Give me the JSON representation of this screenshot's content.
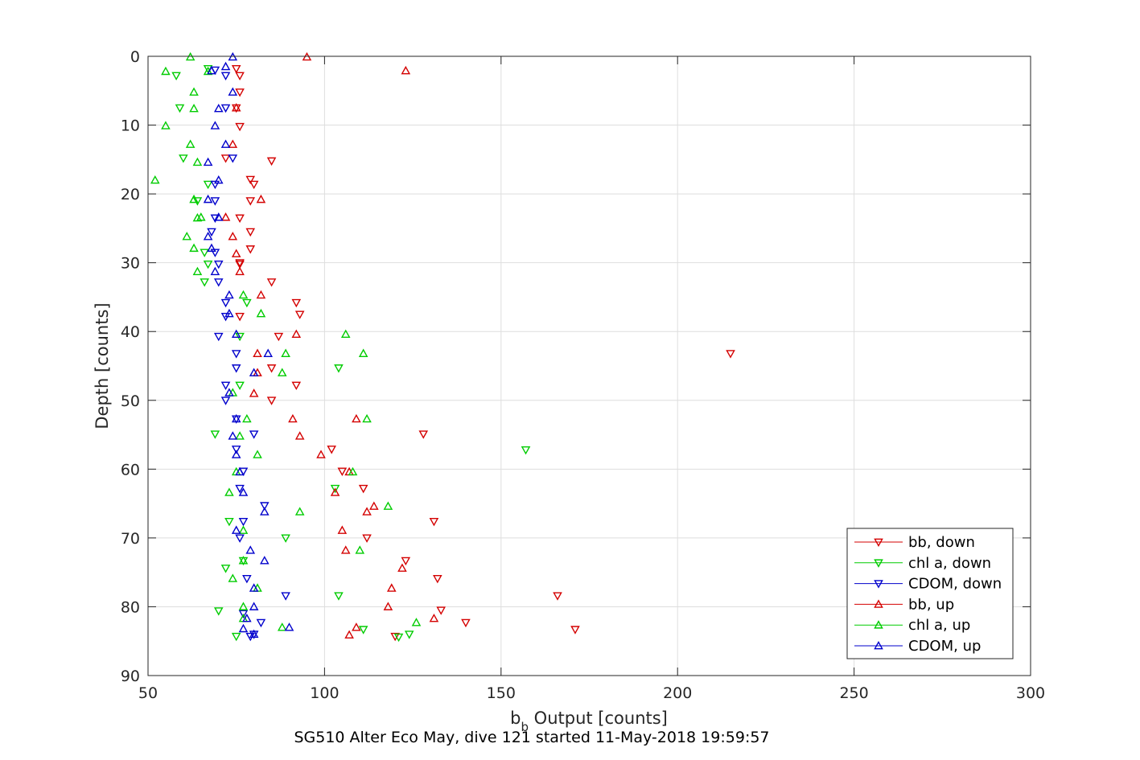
{
  "chart_data": {
    "type": "scatter",
    "title": "",
    "caption": "SG510 Alter Eco May, dive 121 started 11-May-2018 19:59:57",
    "xlabel_main": "b",
    "xlabel_sub": "b",
    "xlabel_rest": " Output [counts]",
    "ylabel": "Depth [counts]",
    "xlim": [
      50,
      300
    ],
    "ylim": [
      0,
      90
    ],
    "y_reversed": true,
    "grid": true,
    "legend_position": "bottom-right",
    "x_ticks": [
      "50",
      "100",
      "150",
      "200",
      "250",
      "300"
    ],
    "y_ticks": [
      "0",
      "10",
      "20",
      "30",
      "40",
      "50",
      "60",
      "70",
      "80",
      "90"
    ],
    "series": [
      {
        "name": "bb, down",
        "color": "#d40000",
        "marker": "triangle-down",
        "points": [
          [
            75,
            1.8
          ],
          [
            76,
            2.8
          ],
          [
            76,
            5.2
          ],
          [
            75,
            7.5
          ],
          [
            76,
            10.2
          ],
          [
            72,
            14.8
          ],
          [
            85,
            15.2
          ],
          [
            79,
            17.9
          ],
          [
            80,
            18.6
          ],
          [
            79,
            21
          ],
          [
            76,
            23.5
          ],
          [
            79,
            25.5
          ],
          [
            79,
            28
          ],
          [
            76,
            30.2
          ],
          [
            85,
            32.8
          ],
          [
            92,
            35.8
          ],
          [
            76,
            37.8
          ],
          [
            87,
            40.7
          ],
          [
            85,
            45.3
          ],
          [
            92,
            47.8
          ],
          [
            85,
            50
          ],
          [
            93,
            37.5
          ],
          [
            102,
            57.1
          ],
          [
            105,
            60.3
          ],
          [
            111,
            62.8
          ],
          [
            131,
            67.6
          ],
          [
            112,
            70
          ],
          [
            123,
            73.3
          ],
          [
            132,
            75.9
          ],
          [
            166,
            78.4
          ],
          [
            171,
            83.3
          ],
          [
            215,
            43.2
          ],
          [
            128,
            54.9
          ],
          [
            120,
            84.3
          ],
          [
            76,
            30
          ],
          [
            133,
            80.5
          ],
          [
            140,
            82.3
          ]
        ]
      },
      {
        "name": "chl a, down",
        "color": "#00cc00",
        "marker": "triangle-down",
        "points": [
          [
            58,
            2.8
          ],
          [
            67,
            1.8
          ],
          [
            59,
            7.5
          ],
          [
            60,
            14.8
          ],
          [
            67,
            18.6
          ],
          [
            64,
            21
          ],
          [
            66,
            28.5
          ],
          [
            67,
            30.2
          ],
          [
            66,
            32.8
          ],
          [
            78,
            35.8
          ],
          [
            76,
            40.7
          ],
          [
            104,
            45.3
          ],
          [
            76,
            47.8
          ],
          [
            69,
            54.9
          ],
          [
            103,
            62.8
          ],
          [
            73,
            67.6
          ],
          [
            89,
            70
          ],
          [
            72,
            74.4
          ],
          [
            104,
            78.4
          ],
          [
            70,
            80.6
          ],
          [
            111,
            83.3
          ],
          [
            124,
            84
          ],
          [
            75,
            84.3
          ],
          [
            77,
            73.3
          ],
          [
            121,
            84.4
          ],
          [
            157,
            57.2
          ]
        ]
      },
      {
        "name": "CDOM, down",
        "color": "#0000cc",
        "marker": "triangle-down",
        "points": [
          [
            72,
            2.8
          ],
          [
            69,
            2
          ],
          [
            72,
            7.5
          ],
          [
            74,
            14.8
          ],
          [
            69,
            18.6
          ],
          [
            69,
            21
          ],
          [
            69,
            23.5
          ],
          [
            68,
            25.5
          ],
          [
            69,
            28.5
          ],
          [
            70,
            30.2
          ],
          [
            70,
            32.8
          ],
          [
            72,
            35.8
          ],
          [
            72,
            37.8
          ],
          [
            70,
            40.7
          ],
          [
            75,
            43.2
          ],
          [
            75,
            45.3
          ],
          [
            72,
            47.8
          ],
          [
            72,
            50
          ],
          [
            75,
            52.7
          ],
          [
            80,
            54.9
          ],
          [
            75,
            57.1
          ],
          [
            77,
            60.3
          ],
          [
            76,
            62.8
          ],
          [
            83,
            65.3
          ],
          [
            77,
            67.6
          ],
          [
            76,
            70
          ],
          [
            78,
            75.9
          ],
          [
            89,
            78.4
          ],
          [
            77,
            81
          ],
          [
            82,
            82.3
          ],
          [
            80,
            84
          ],
          [
            79,
            84.3
          ]
        ]
      },
      {
        "name": "bb, up",
        "color": "#d40000",
        "marker": "triangle-up",
        "points": [
          [
            95,
            0.1
          ],
          [
            123,
            2.1
          ],
          [
            75,
            7.5
          ],
          [
            74,
            12.8
          ],
          [
            82,
            20.8
          ],
          [
            72,
            23.4
          ],
          [
            74,
            26.2
          ],
          [
            75,
            28.7
          ],
          [
            76,
            31.3
          ],
          [
            82,
            34.7
          ],
          [
            92,
            40.4
          ],
          [
            81,
            43.2
          ],
          [
            81,
            46
          ],
          [
            80,
            49
          ],
          [
            91,
            52.7
          ],
          [
            93,
            55.2
          ],
          [
            99,
            57.9
          ],
          [
            109,
            52.7
          ],
          [
            107,
            60.4
          ],
          [
            103,
            63.4
          ],
          [
            114,
            65.4
          ],
          [
            112,
            66.2
          ],
          [
            105,
            68.9
          ],
          [
            106,
            71.8
          ],
          [
            122,
            74.4
          ],
          [
            119,
            77.3
          ],
          [
            118,
            80
          ],
          [
            131,
            81.7
          ],
          [
            109,
            83
          ],
          [
            107,
            84.1
          ]
        ]
      },
      {
        "name": "chl a, up",
        "color": "#00cc00",
        "marker": "triangle-up",
        "points": [
          [
            62,
            0.1
          ],
          [
            55,
            2.2
          ],
          [
            67,
            2.2
          ],
          [
            63,
            5.2
          ],
          [
            63,
            7.6
          ],
          [
            55,
            10.1
          ],
          [
            62,
            12.8
          ],
          [
            64,
            15.4
          ],
          [
            52,
            18
          ],
          [
            63,
            20.8
          ],
          [
            65,
            23.4
          ],
          [
            64,
            23.5
          ],
          [
            61,
            26.2
          ],
          [
            63,
            27.9
          ],
          [
            64,
            31.3
          ],
          [
            77,
            34.7
          ],
          [
            82,
            37.4
          ],
          [
            106,
            40.4
          ],
          [
            111,
            43.2
          ],
          [
            89,
            43.2
          ],
          [
            88,
            46
          ],
          [
            74,
            48.9
          ],
          [
            78,
            52.7
          ],
          [
            112,
            52.7
          ],
          [
            76,
            55.2
          ],
          [
            81,
            57.9
          ],
          [
            75,
            60.4
          ],
          [
            108,
            60.4
          ],
          [
            73,
            63.4
          ],
          [
            118,
            65.4
          ],
          [
            93,
            66.2
          ],
          [
            77,
            68.9
          ],
          [
            110,
            71.8
          ],
          [
            77,
            73.3
          ],
          [
            74,
            75.9
          ],
          [
            81,
            77.3
          ],
          [
            77,
            80
          ],
          [
            77,
            81.7
          ],
          [
            88,
            83
          ],
          [
            126,
            82.3
          ]
        ]
      },
      {
        "name": "CDOM, up",
        "color": "#0000cc",
        "marker": "triangle-up",
        "points": [
          [
            74,
            0.1
          ],
          [
            72,
            1.5
          ],
          [
            68,
            2.1
          ],
          [
            74,
            5.2
          ],
          [
            70,
            7.6
          ],
          [
            69,
            10.1
          ],
          [
            72,
            12.8
          ],
          [
            67,
            15.4
          ],
          [
            70,
            18
          ],
          [
            67,
            20.8
          ],
          [
            70,
            23.4
          ],
          [
            67,
            26.2
          ],
          [
            68,
            27.9
          ],
          [
            69,
            31.3
          ],
          [
            73,
            34.7
          ],
          [
            73,
            37.4
          ],
          [
            75,
            40.4
          ],
          [
            84,
            43.2
          ],
          [
            80,
            46
          ],
          [
            73,
            48.9
          ],
          [
            75,
            52.7
          ],
          [
            74,
            55.2
          ],
          [
            75,
            57.9
          ],
          [
            76,
            60.4
          ],
          [
            77,
            63.4
          ],
          [
            83,
            66.2
          ],
          [
            75,
            68.9
          ],
          [
            79,
            71.8
          ],
          [
            83,
            73.3
          ],
          [
            80,
            77.3
          ],
          [
            80,
            80
          ],
          [
            78,
            81.7
          ],
          [
            90,
            83
          ],
          [
            77,
            83.2
          ],
          [
            80,
            84
          ]
        ]
      }
    ]
  }
}
